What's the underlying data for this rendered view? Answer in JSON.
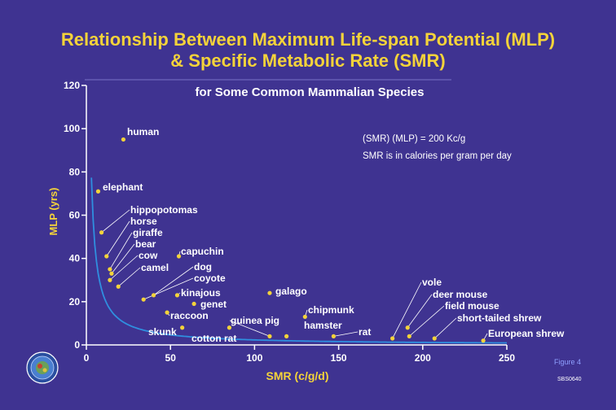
{
  "colors": {
    "background": "#3f3391",
    "title": "#f4d33a",
    "axis": "#ffffff",
    "curve": "#2f8fdf",
    "points": "#f4d33a",
    "labels": "#ffffff",
    "figure_note": "#8fa0ff"
  },
  "header": {
    "title_line1": "Relationship Between Maximum Life-span Potential (MLP)",
    "title_line2": "& Specific Metabolic Rate (SMR)"
  },
  "footer": {
    "figure_label": "Figure 4",
    "code": "SBS0640"
  },
  "logo": {
    "icon": "seal-emblem-icon"
  },
  "chart_data": {
    "type": "scatter",
    "title": "for Some Common Mammalian Species",
    "xlabel": "SMR (c/g/d)",
    "ylabel": "MLP (yrs)",
    "xlim": [
      0,
      250
    ],
    "ylim": [
      0,
      120
    ],
    "xticks": [
      "0",
      "50",
      "100",
      "150",
      "200",
      "250"
    ],
    "yticks": [
      "0",
      "20",
      "40",
      "60",
      "80",
      "100",
      "120"
    ],
    "annotations": [
      "(SMR) (MLP) = 200 Kc/g",
      "SMR is in calories per gram per day"
    ],
    "curve": {
      "name": "(SMR) (MLP) = 200 Kc/g",
      "x_start": 2,
      "x_end": 250
    },
    "points": [
      {
        "name": "human",
        "x": 22,
        "y": 95
      },
      {
        "name": "elephant",
        "x": 7,
        "y": 71
      },
      {
        "name": "hippopotomas",
        "x": 9,
        "y": 52
      },
      {
        "name": "horse",
        "x": 12,
        "y": 41
      },
      {
        "name": "giraffe",
        "x": 14,
        "y": 35
      },
      {
        "name": "bear",
        "x": 15,
        "y": 33
      },
      {
        "name": "cow",
        "x": 14,
        "y": 30
      },
      {
        "name": "camel",
        "x": 19,
        "y": 27
      },
      {
        "name": "capuchin",
        "x": 55,
        "y": 41
      },
      {
        "name": "dog",
        "x": 40,
        "y": 23
      },
      {
        "name": "coyote",
        "x": 34,
        "y": 21
      },
      {
        "name": "kinajous",
        "x": 54,
        "y": 23
      },
      {
        "name": "galago",
        "x": 109,
        "y": 24
      },
      {
        "name": "genet",
        "x": 64,
        "y": 19
      },
      {
        "name": "raccoon",
        "x": 48,
        "y": 15
      },
      {
        "name": "skunk",
        "x": 57,
        "y": 8
      },
      {
        "name": "cotton rat",
        "x": 85,
        "y": 8
      },
      {
        "name": "guinea pig",
        "x": 109,
        "y": 4
      },
      {
        "name": "chipmunk",
        "x": 130,
        "y": 13
      },
      {
        "name": "hamster",
        "x": 119,
        "y": 4
      },
      {
        "name": "rat",
        "x": 147,
        "y": 4
      },
      {
        "name": "vole",
        "x": 182,
        "y": 3
      },
      {
        "name": "deer mouse",
        "x": 191,
        "y": 8
      },
      {
        "name": "field mouse",
        "x": 192,
        "y": 4
      },
      {
        "name": "short-tailed shrew",
        "x": 207,
        "y": 3
      },
      {
        "name": "European shrew",
        "x": 236,
        "y": 2
      }
    ]
  }
}
